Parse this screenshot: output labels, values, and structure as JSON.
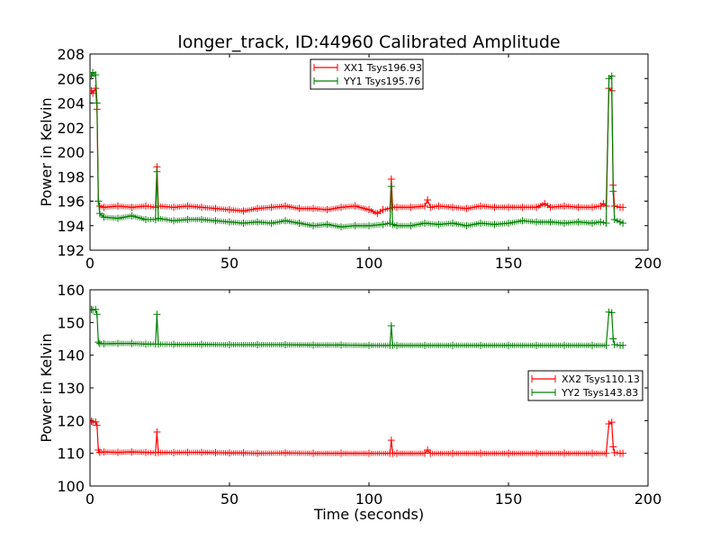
{
  "chart_data": [
    {
      "type": "line",
      "title": "longer_track, ID:44960 Calibrated Amplitude",
      "xlabel": "",
      "ylabel": "Power in Kelvin",
      "xlim": [
        0,
        200
      ],
      "ylim": [
        192,
        208
      ],
      "xticks": [
        0,
        50,
        100,
        150,
        200
      ],
      "yticks": [
        192,
        194,
        196,
        198,
        200,
        202,
        204,
        206,
        208
      ],
      "legend_position": "upper-center",
      "series": [
        {
          "name": "XX1 Tsys196.93",
          "color": "#ff0000",
          "points": [
            [
              0.5,
              205.0
            ],
            [
              1,
              204.8
            ],
            [
              2,
              205.2
            ],
            [
              2.5,
              203.5
            ],
            [
              3,
              196.0
            ],
            [
              3.5,
              195.6
            ],
            [
              5,
              195.5
            ],
            [
              10,
              195.6
            ],
            [
              15,
              195.5
            ],
            [
              20,
              195.6
            ],
            [
              23.5,
              195.5
            ],
            [
              24,
              198.8
            ],
            [
              24.5,
              195.6
            ],
            [
              30,
              195.5
            ],
            [
              35,
              195.6
            ],
            [
              40,
              195.5
            ],
            [
              45,
              195.4
            ],
            [
              50,
              195.3
            ],
            [
              55,
              195.2
            ],
            [
              60,
              195.4
            ],
            [
              65,
              195.5
            ],
            [
              70,
              195.6
            ],
            [
              75,
              195.4
            ],
            [
              80,
              195.4
            ],
            [
              85,
              195.3
            ],
            [
              90,
              195.5
            ],
            [
              95,
              195.6
            ],
            [
              100,
              195.3
            ],
            [
              103,
              195.0
            ],
            [
              105,
              195.3
            ],
            [
              107.5,
              195.4
            ],
            [
              108,
              197.8
            ],
            [
              108.5,
              195.5
            ],
            [
              110,
              195.5
            ],
            [
              115,
              195.5
            ],
            [
              120,
              195.6
            ],
            [
              121,
              196.1
            ],
            [
              122,
              195.5
            ],
            [
              125,
              195.6
            ],
            [
              130,
              195.5
            ],
            [
              135,
              195.4
            ],
            [
              140,
              195.6
            ],
            [
              145,
              195.5
            ],
            [
              150,
              195.5
            ],
            [
              155,
              195.5
            ],
            [
              160,
              195.5
            ],
            [
              163,
              195.8
            ],
            [
              165,
              195.5
            ],
            [
              170,
              195.6
            ],
            [
              175,
              195.5
            ],
            [
              180,
              195.5
            ],
            [
              183,
              195.6
            ],
            [
              184,
              195.8
            ],
            [
              185,
              195.6
            ],
            [
              186,
              205.2
            ],
            [
              187,
              205.0
            ],
            [
              187.5,
              197.3
            ],
            [
              188,
              195.6
            ],
            [
              190,
              195.5
            ],
            [
              191,
              195.5
            ]
          ]
        },
        {
          "name": "YY1 Tsys195.76",
          "color": "#008000",
          "points": [
            [
              0.5,
              206.2
            ],
            [
              1,
              206.5
            ],
            [
              2,
              206.3
            ],
            [
              2.5,
              204.0
            ],
            [
              3,
              196.0
            ],
            [
              3.5,
              195.0
            ],
            [
              5,
              194.7
            ],
            [
              10,
              194.6
            ],
            [
              15,
              194.8
            ],
            [
              20,
              194.5
            ],
            [
              23.5,
              194.5
            ],
            [
              24,
              198.4
            ],
            [
              24.5,
              194.6
            ],
            [
              30,
              194.4
            ],
            [
              35,
              194.5
            ],
            [
              40,
              194.5
            ],
            [
              45,
              194.4
            ],
            [
              50,
              194.3
            ],
            [
              55,
              194.2
            ],
            [
              60,
              194.3
            ],
            [
              65,
              194.2
            ],
            [
              70,
              194.4
            ],
            [
              75,
              194.2
            ],
            [
              80,
              194.0
            ],
            [
              85,
              194.1
            ],
            [
              90,
              193.9
            ],
            [
              95,
              194.0
            ],
            [
              100,
              194.0
            ],
            [
              105,
              194.1
            ],
            [
              107.5,
              194.2
            ],
            [
              108,
              197.2
            ],
            [
              108.5,
              194.1
            ],
            [
              110,
              194.0
            ],
            [
              115,
              194.0
            ],
            [
              120,
              194.2
            ],
            [
              125,
              194.1
            ],
            [
              130,
              194.2
            ],
            [
              135,
              194.0
            ],
            [
              140,
              194.2
            ],
            [
              145,
              194.1
            ],
            [
              150,
              194.2
            ],
            [
              155,
              194.4
            ],
            [
              160,
              194.3
            ],
            [
              165,
              194.3
            ],
            [
              170,
              194.2
            ],
            [
              175,
              194.3
            ],
            [
              180,
              194.2
            ],
            [
              183,
              194.3
            ],
            [
              185,
              194.2
            ],
            [
              186,
              206.0
            ],
            [
              187,
              206.2
            ],
            [
              187.5,
              196.8
            ],
            [
              188,
              194.5
            ],
            [
              190,
              194.3
            ],
            [
              191,
              194.2
            ]
          ]
        }
      ]
    },
    {
      "type": "line",
      "title": "",
      "xlabel": "Time (seconds)",
      "ylabel": "Power in Kelvin",
      "xlim": [
        0,
        200
      ],
      "ylim": [
        100,
        160
      ],
      "xticks": [
        0,
        50,
        100,
        150,
        200
      ],
      "yticks": [
        100,
        110,
        120,
        130,
        140,
        150,
        160
      ],
      "legend_position": "center-right",
      "series": [
        {
          "name": "XX2 Tsys110.13",
          "color": "#ff0000",
          "points": [
            [
              0.5,
              119.8
            ],
            [
              1,
              119.5
            ],
            [
              2,
              119.6
            ],
            [
              2.5,
              118.5
            ],
            [
              3,
              111.0
            ],
            [
              3.5,
              110.3
            ],
            [
              5,
              110.4
            ],
            [
              10,
              110.3
            ],
            [
              15,
              110.4
            ],
            [
              20,
              110.3
            ],
            [
              23.5,
              110.2
            ],
            [
              24,
              116.5
            ],
            [
              24.5,
              110.3
            ],
            [
              30,
              110.2
            ],
            [
              35,
              110.3
            ],
            [
              40,
              110.3
            ],
            [
              45,
              110.2
            ],
            [
              50,
              110.1
            ],
            [
              55,
              110.1
            ],
            [
              60,
              110.0
            ],
            [
              70,
              110.1
            ],
            [
              80,
              110.0
            ],
            [
              90,
              110.0
            ],
            [
              100,
              110.0
            ],
            [
              107.5,
              110.0
            ],
            [
              108,
              114.0
            ],
            [
              108.5,
              110.0
            ],
            [
              110,
              110.0
            ],
            [
              120,
              110.0
            ],
            [
              121,
              111.0
            ],
            [
              122,
              110.0
            ],
            [
              130,
              110.0
            ],
            [
              140,
              110.0
            ],
            [
              150,
              110.0
            ],
            [
              160,
              110.0
            ],
            [
              170,
              110.0
            ],
            [
              180,
              110.0
            ],
            [
              185,
              110.0
            ],
            [
              186,
              119.0
            ],
            [
              187,
              119.5
            ],
            [
              187.5,
              112.0
            ],
            [
              188,
              110.2
            ],
            [
              190,
              110.0
            ],
            [
              191,
              110.0
            ]
          ]
        },
        {
          "name": "YY2 Tsys143.83",
          "color": "#008000",
          "points": [
            [
              0.5,
              154.0
            ],
            [
              1,
              153.8
            ],
            [
              2,
              154.0
            ],
            [
              2.5,
              152.5
            ],
            [
              3,
              144.0
            ],
            [
              3.5,
              143.6
            ],
            [
              5,
              143.5
            ],
            [
              10,
              143.6
            ],
            [
              15,
              143.6
            ],
            [
              20,
              143.4
            ],
            [
              23.5,
              143.4
            ],
            [
              24,
              152.5
            ],
            [
              24.5,
              143.4
            ],
            [
              30,
              143.3
            ],
            [
              40,
              143.3
            ],
            [
              50,
              143.2
            ],
            [
              60,
              143.2
            ],
            [
              70,
              143.2
            ],
            [
              80,
              143.1
            ],
            [
              90,
              143.1
            ],
            [
              100,
              143.0
            ],
            [
              107.5,
              143.0
            ],
            [
              108,
              149.0
            ],
            [
              108.5,
              143.0
            ],
            [
              110,
              143.0
            ],
            [
              120,
              143.0
            ],
            [
              130,
              143.0
            ],
            [
              140,
              143.0
            ],
            [
              150,
              143.0
            ],
            [
              160,
              143.0
            ],
            [
              170,
              143.0
            ],
            [
              180,
              143.0
            ],
            [
              185,
              143.0
            ],
            [
              186,
              153.2
            ],
            [
              187,
              153.0
            ],
            [
              187.5,
              145.0
            ],
            [
              188,
              143.2
            ],
            [
              190,
              143.0
            ],
            [
              191,
              143.0
            ]
          ]
        }
      ]
    }
  ]
}
